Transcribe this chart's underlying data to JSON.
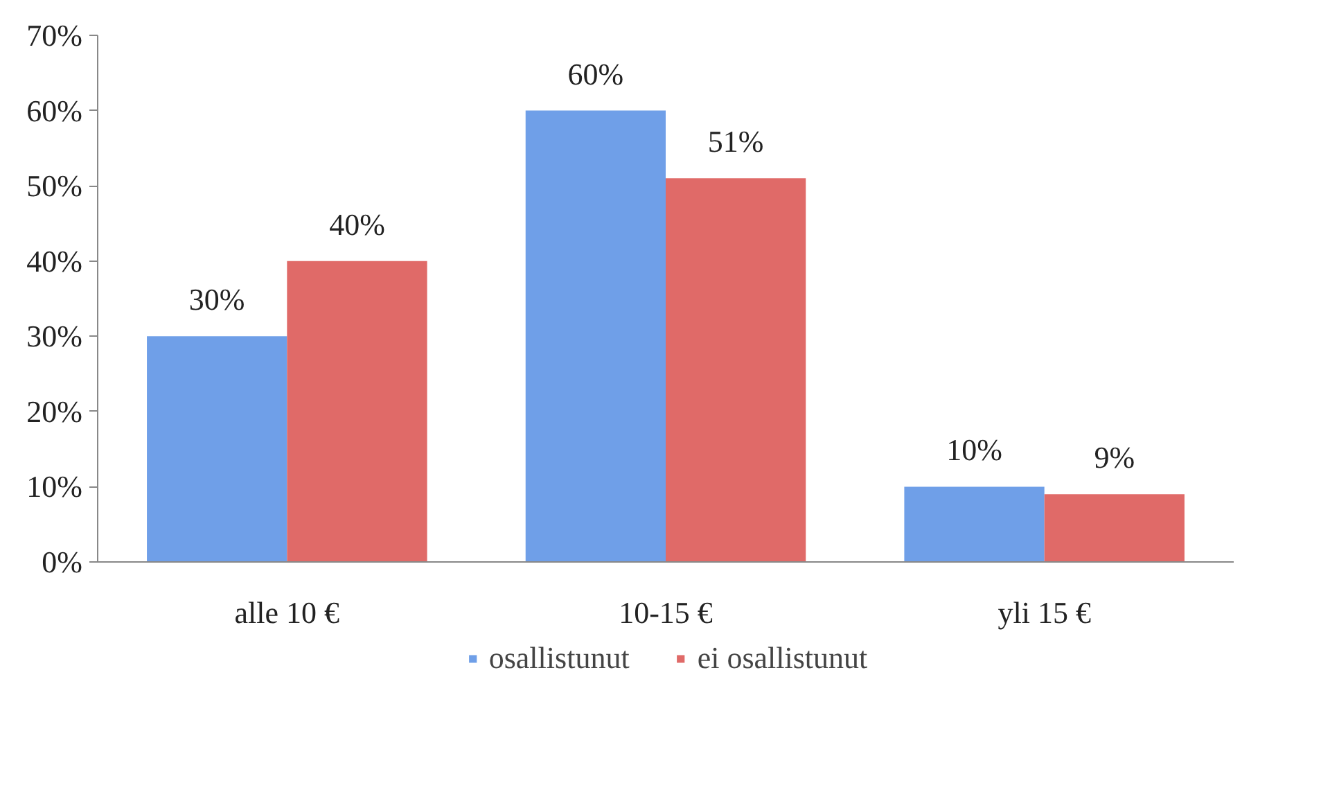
{
  "chart_data": {
    "type": "bar",
    "categories": [
      "alle 10 €",
      "10-15 €",
      "yli 15 €"
    ],
    "series": [
      {
        "name": "osallistunut",
        "color": "#6f9fe8",
        "values": [
          30,
          60,
          10
        ],
        "value_labels": [
          "30%",
          "60%",
          "10%"
        ]
      },
      {
        "name": "ei osallistunut",
        "color": "#e06a68",
        "values": [
          40,
          51,
          9
        ],
        "value_labels": [
          "40%",
          "51%",
          "9%"
        ]
      }
    ],
    "ylim": [
      0,
      70
    ],
    "yticks": [
      {
        "value": 0,
        "label": "0%"
      },
      {
        "value": 10,
        "label": "10%"
      },
      {
        "value": 20,
        "label": "20%"
      },
      {
        "value": 30,
        "label": "30%"
      },
      {
        "value": 40,
        "label": "40%"
      },
      {
        "value": 50,
        "label": "50%"
      },
      {
        "value": 60,
        "label": "60%"
      },
      {
        "value": 70,
        "label": "70%"
      }
    ],
    "grid": false,
    "legend": "bottom"
  }
}
